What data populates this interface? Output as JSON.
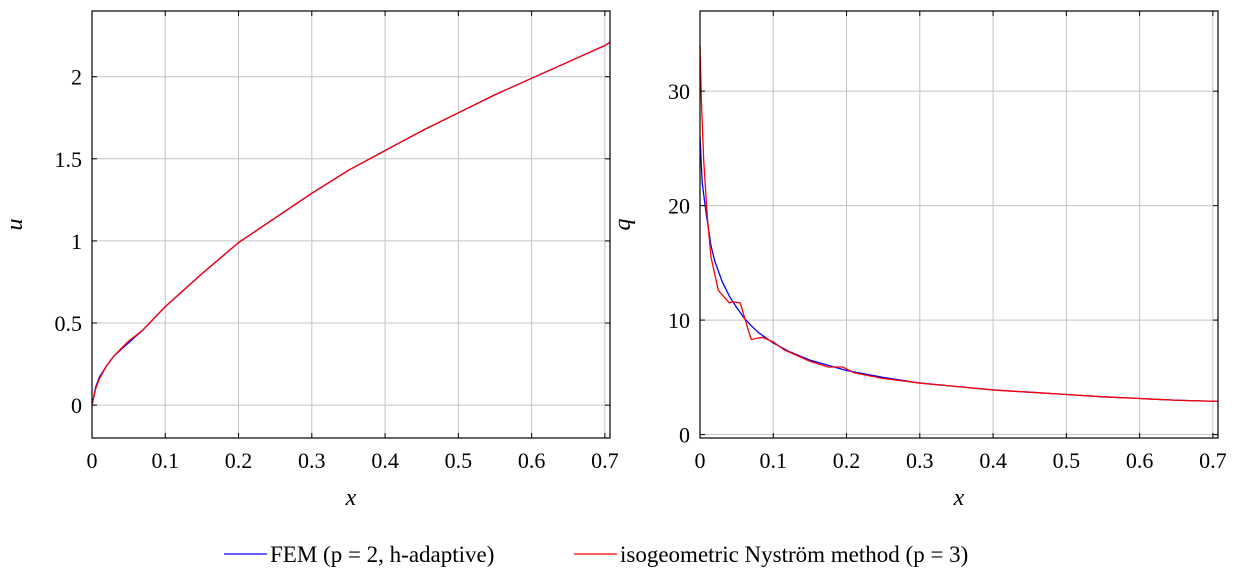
{
  "chart_data": [
    {
      "type": "line",
      "xlabel": "x",
      "ylabel": "u",
      "xlim": [
        0,
        0.707
      ],
      "ylim": [
        -0.2,
        2.4
      ],
      "xticks": [
        0,
        0.1,
        0.2,
        0.3,
        0.4,
        0.5,
        0.6,
        0.7
      ],
      "xtick_labels": [
        "0",
        "0.1",
        "0.2",
        "0.3",
        "0.4",
        "0.5",
        "0.6",
        "0.7"
      ],
      "yticks": [
        0,
        0.5,
        1,
        1.5,
        2
      ],
      "ytick_labels": [
        "0",
        "0.5",
        "1",
        "1.5",
        "2"
      ],
      "grid": true,
      "series": [
        {
          "name": "FEM (p = 2, h-adaptive)",
          "color": "#0000ff",
          "x": [
            0,
            0.005,
            0.01,
            0.02,
            0.03,
            0.05,
            0.07,
            0.1,
            0.15,
            0.2,
            0.25,
            0.3,
            0.35,
            0.4,
            0.45,
            0.5,
            0.55,
            0.6,
            0.65,
            0.7,
            0.707
          ],
          "y": [
            0,
            0.11,
            0.17,
            0.24,
            0.3,
            0.38,
            0.46,
            0.6,
            0.8,
            0.99,
            1.14,
            1.29,
            1.43,
            1.55,
            1.67,
            1.78,
            1.89,
            1.99,
            2.09,
            2.19,
            2.21
          ]
        },
        {
          "name": "isogeometric Nyström method (p = 3)",
          "color": "#ff0000",
          "x": [
            0,
            0.005,
            0.01,
            0.02,
            0.03,
            0.05,
            0.07,
            0.1,
            0.15,
            0.2,
            0.25,
            0.3,
            0.35,
            0.4,
            0.45,
            0.5,
            0.55,
            0.6,
            0.65,
            0.7,
            0.707
          ],
          "y": [
            0,
            0.1,
            0.16,
            0.24,
            0.3,
            0.39,
            0.46,
            0.6,
            0.8,
            0.99,
            1.14,
            1.29,
            1.43,
            1.55,
            1.67,
            1.78,
            1.89,
            1.99,
            2.09,
            2.19,
            2.21
          ]
        }
      ]
    },
    {
      "type": "line",
      "xlabel": "x",
      "ylabel": "q",
      "xlim": [
        0,
        0.707
      ],
      "ylim": [
        -0.3,
        37
      ],
      "xticks": [
        0,
        0.1,
        0.2,
        0.3,
        0.4,
        0.5,
        0.6,
        0.7
      ],
      "xtick_labels": [
        "0",
        "0.1",
        "0.2",
        "0.3",
        "0.4",
        "0.5",
        "0.6",
        "0.7"
      ],
      "yticks": [
        0,
        10,
        20,
        30
      ],
      "ytick_labels": [
        "0",
        "10",
        "20",
        "30"
      ],
      "grid": true,
      "series": [
        {
          "name": "FEM (p = 2, h-adaptive)",
          "color": "#0000ff",
          "x": [
            0,
            0.003,
            0.008,
            0.015,
            0.02,
            0.03,
            0.04,
            0.05,
            0.06,
            0.07,
            0.08,
            0.1,
            0.12,
            0.15,
            0.2,
            0.25,
            0.3,
            0.35,
            0.4,
            0.45,
            0.5,
            0.55,
            0.6,
            0.65,
            0.707
          ],
          "y": [
            26,
            22,
            19.5,
            16.5,
            15.2,
            13.4,
            12.1,
            11.1,
            10.2,
            9.5,
            8.9,
            8.0,
            7.3,
            6.5,
            5.6,
            5.0,
            4.5,
            4.2,
            3.9,
            3.7,
            3.5,
            3.3,
            3.15,
            3.0,
            2.9
          ]
        },
        {
          "name": "isogeometric Nyström method (p = 3)",
          "color": "#ff0000",
          "x": [
            0,
            0.002,
            0.005,
            0.01,
            0.015,
            0.025,
            0.04,
            0.045,
            0.055,
            0.065,
            0.07,
            0.085,
            0.1,
            0.115,
            0.15,
            0.175,
            0.195,
            0.21,
            0.25,
            0.3,
            0.35,
            0.4,
            0.45,
            0.5,
            0.55,
            0.6,
            0.65,
            0.707
          ],
          "y": [
            34,
            29,
            24,
            19,
            15.5,
            12.6,
            11.5,
            11.6,
            11.5,
            9.3,
            8.3,
            8.5,
            8.1,
            7.4,
            6.4,
            5.9,
            5.9,
            5.4,
            4.9,
            4.5,
            4.2,
            3.9,
            3.7,
            3.5,
            3.3,
            3.15,
            3.0,
            2.9
          ]
        }
      ]
    }
  ],
  "legend": [
    {
      "label": "FEM (p = 2, h-adaptive)",
      "color": "#0000ff"
    },
    {
      "label": "isogeometric Nyström method (p = 3)",
      "color": "#ff0000"
    }
  ]
}
